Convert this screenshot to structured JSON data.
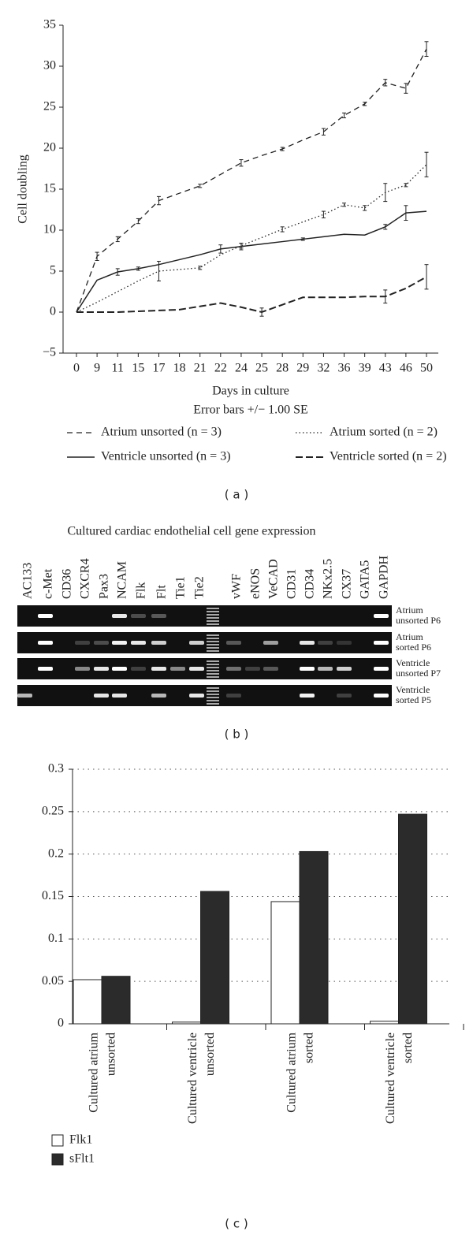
{
  "chart_data": [
    {
      "type": "line",
      "y_label": "Cell doubling",
      "x_label": "Days in culture",
      "note": "Error bars +/− 1.00 SE",
      "categories": [
        0,
        9,
        11,
        15,
        17,
        18,
        21,
        22,
        24,
        25,
        28,
        29,
        32,
        36,
        39,
        43,
        46,
        50
      ],
      "ylim": [
        -5,
        35
      ],
      "yticks": [
        {
          "value": -5,
          "label": "−5"
        },
        0,
        5,
        10,
        15,
        20,
        25,
        30,
        35
      ],
      "series": [
        {
          "name": "Atrium unsorted (n = 3)",
          "color": "#222222",
          "line_style": "dashed",
          "values": [
            0,
            6.8,
            8.9,
            11.1,
            13.6,
            14.5,
            15.4,
            16.8,
            18.2,
            19.1,
            19.9,
            21,
            22,
            24,
            25.4,
            28,
            27.3,
            32.1
          ],
          "errors": [
            null,
            0.5,
            0.3,
            0.3,
            0.5,
            null,
            0.2,
            null,
            0.4,
            null,
            0.2,
            null,
            0.4,
            0.3,
            0.2,
            0.4,
            0.6,
            0.9
          ]
        },
        {
          "name": "Atrium sorted (n = 2)",
          "color": "#222222",
          "line_style": "dotted",
          "values": [
            0,
            1.2,
            2.5,
            3.8,
            5,
            5.2,
            5.4,
            7,
            8.1,
            9.1,
            10.1,
            11,
            11.9,
            13.1,
            12.7,
            14.6,
            15.5,
            18
          ],
          "errors": [
            null,
            null,
            null,
            null,
            1.2,
            null,
            0.2,
            null,
            0.3,
            null,
            0.3,
            null,
            0.4,
            0.2,
            0.3,
            1.1,
            0.2,
            1.5
          ]
        },
        {
          "name": "Ventricle unsorted (n = 3)",
          "color": "#222222",
          "line_style": "solid",
          "values": [
            0,
            3.9,
            4.9,
            5.3,
            5.8,
            6.4,
            7,
            7.7,
            8,
            8.3,
            8.6,
            8.9,
            9.2,
            9.5,
            9.4,
            10.4,
            12.1,
            12.3
          ],
          "errors": [
            null,
            null,
            0.4,
            0.2,
            null,
            null,
            null,
            0.5,
            0.4,
            null,
            null,
            0.15,
            null,
            null,
            null,
            0.3,
            0.9,
            null
          ]
        },
        {
          "name": "Ventricle sorted (n = 2)",
          "color": "#222222",
          "line_style": "dashed-bold",
          "values": [
            0,
            0,
            0,
            0.1,
            0.2,
            0.3,
            0.7,
            1.1,
            0.6,
            0,
            0.9,
            1.8,
            1.8,
            1.8,
            1.9,
            1.9,
            2.9,
            4.3
          ],
          "errors": [
            null,
            null,
            null,
            null,
            null,
            null,
            null,
            null,
            null,
            0.5,
            null,
            null,
            null,
            null,
            null,
            0.8,
            null,
            1.5
          ]
        }
      ]
    },
    {
      "type": "bar",
      "categories": [
        [
          "Cultured atrium",
          "unsorted"
        ],
        [
          "Cultured ventricle",
          "unsorted"
        ],
        [
          "Cultured atrium",
          "sorted"
        ],
        [
          "Cultured ventricle",
          "sorted"
        ]
      ],
      "ylim": [
        0,
        0.3
      ],
      "yticks": [
        0,
        0.05,
        0.1,
        0.15,
        0.2,
        0.25,
        0.3
      ],
      "grid": true,
      "series": [
        {
          "name": "Flk1",
          "color": "#ffffff",
          "values": [
            0.052,
            0.002,
            0.144,
            0.003
          ]
        },
        {
          "name": "sFlt1",
          "color": "#2b2b2b",
          "values": [
            0.056,
            0.156,
            0.203,
            0.247
          ]
        }
      ]
    }
  ],
  "gel": {
    "title": "Cultured cardiac endothelial cell gene expression",
    "lanes": [
      "AC133",
      "c-Met",
      "CD36",
      "CXCR4",
      "Pax3",
      "NCAM",
      "Flk",
      "Flt",
      "Tie1",
      "Tie2",
      "vWF",
      "eNOS",
      "VeCAD",
      "CD31",
      "CD34",
      "NKx2.5",
      "CX37",
      "GATA5",
      "GAPDH"
    ],
    "rows": [
      [
        "Atrium",
        "unsorted P6"
      ],
      [
        "Atrium",
        "sorted P6"
      ],
      [
        "Ventricle",
        "unsorted P7"
      ],
      [
        "Ventricle",
        "sorted P5"
      ]
    ]
  },
  "panel_labels": [
    "( a )",
    "( b )",
    "( c )"
  ]
}
